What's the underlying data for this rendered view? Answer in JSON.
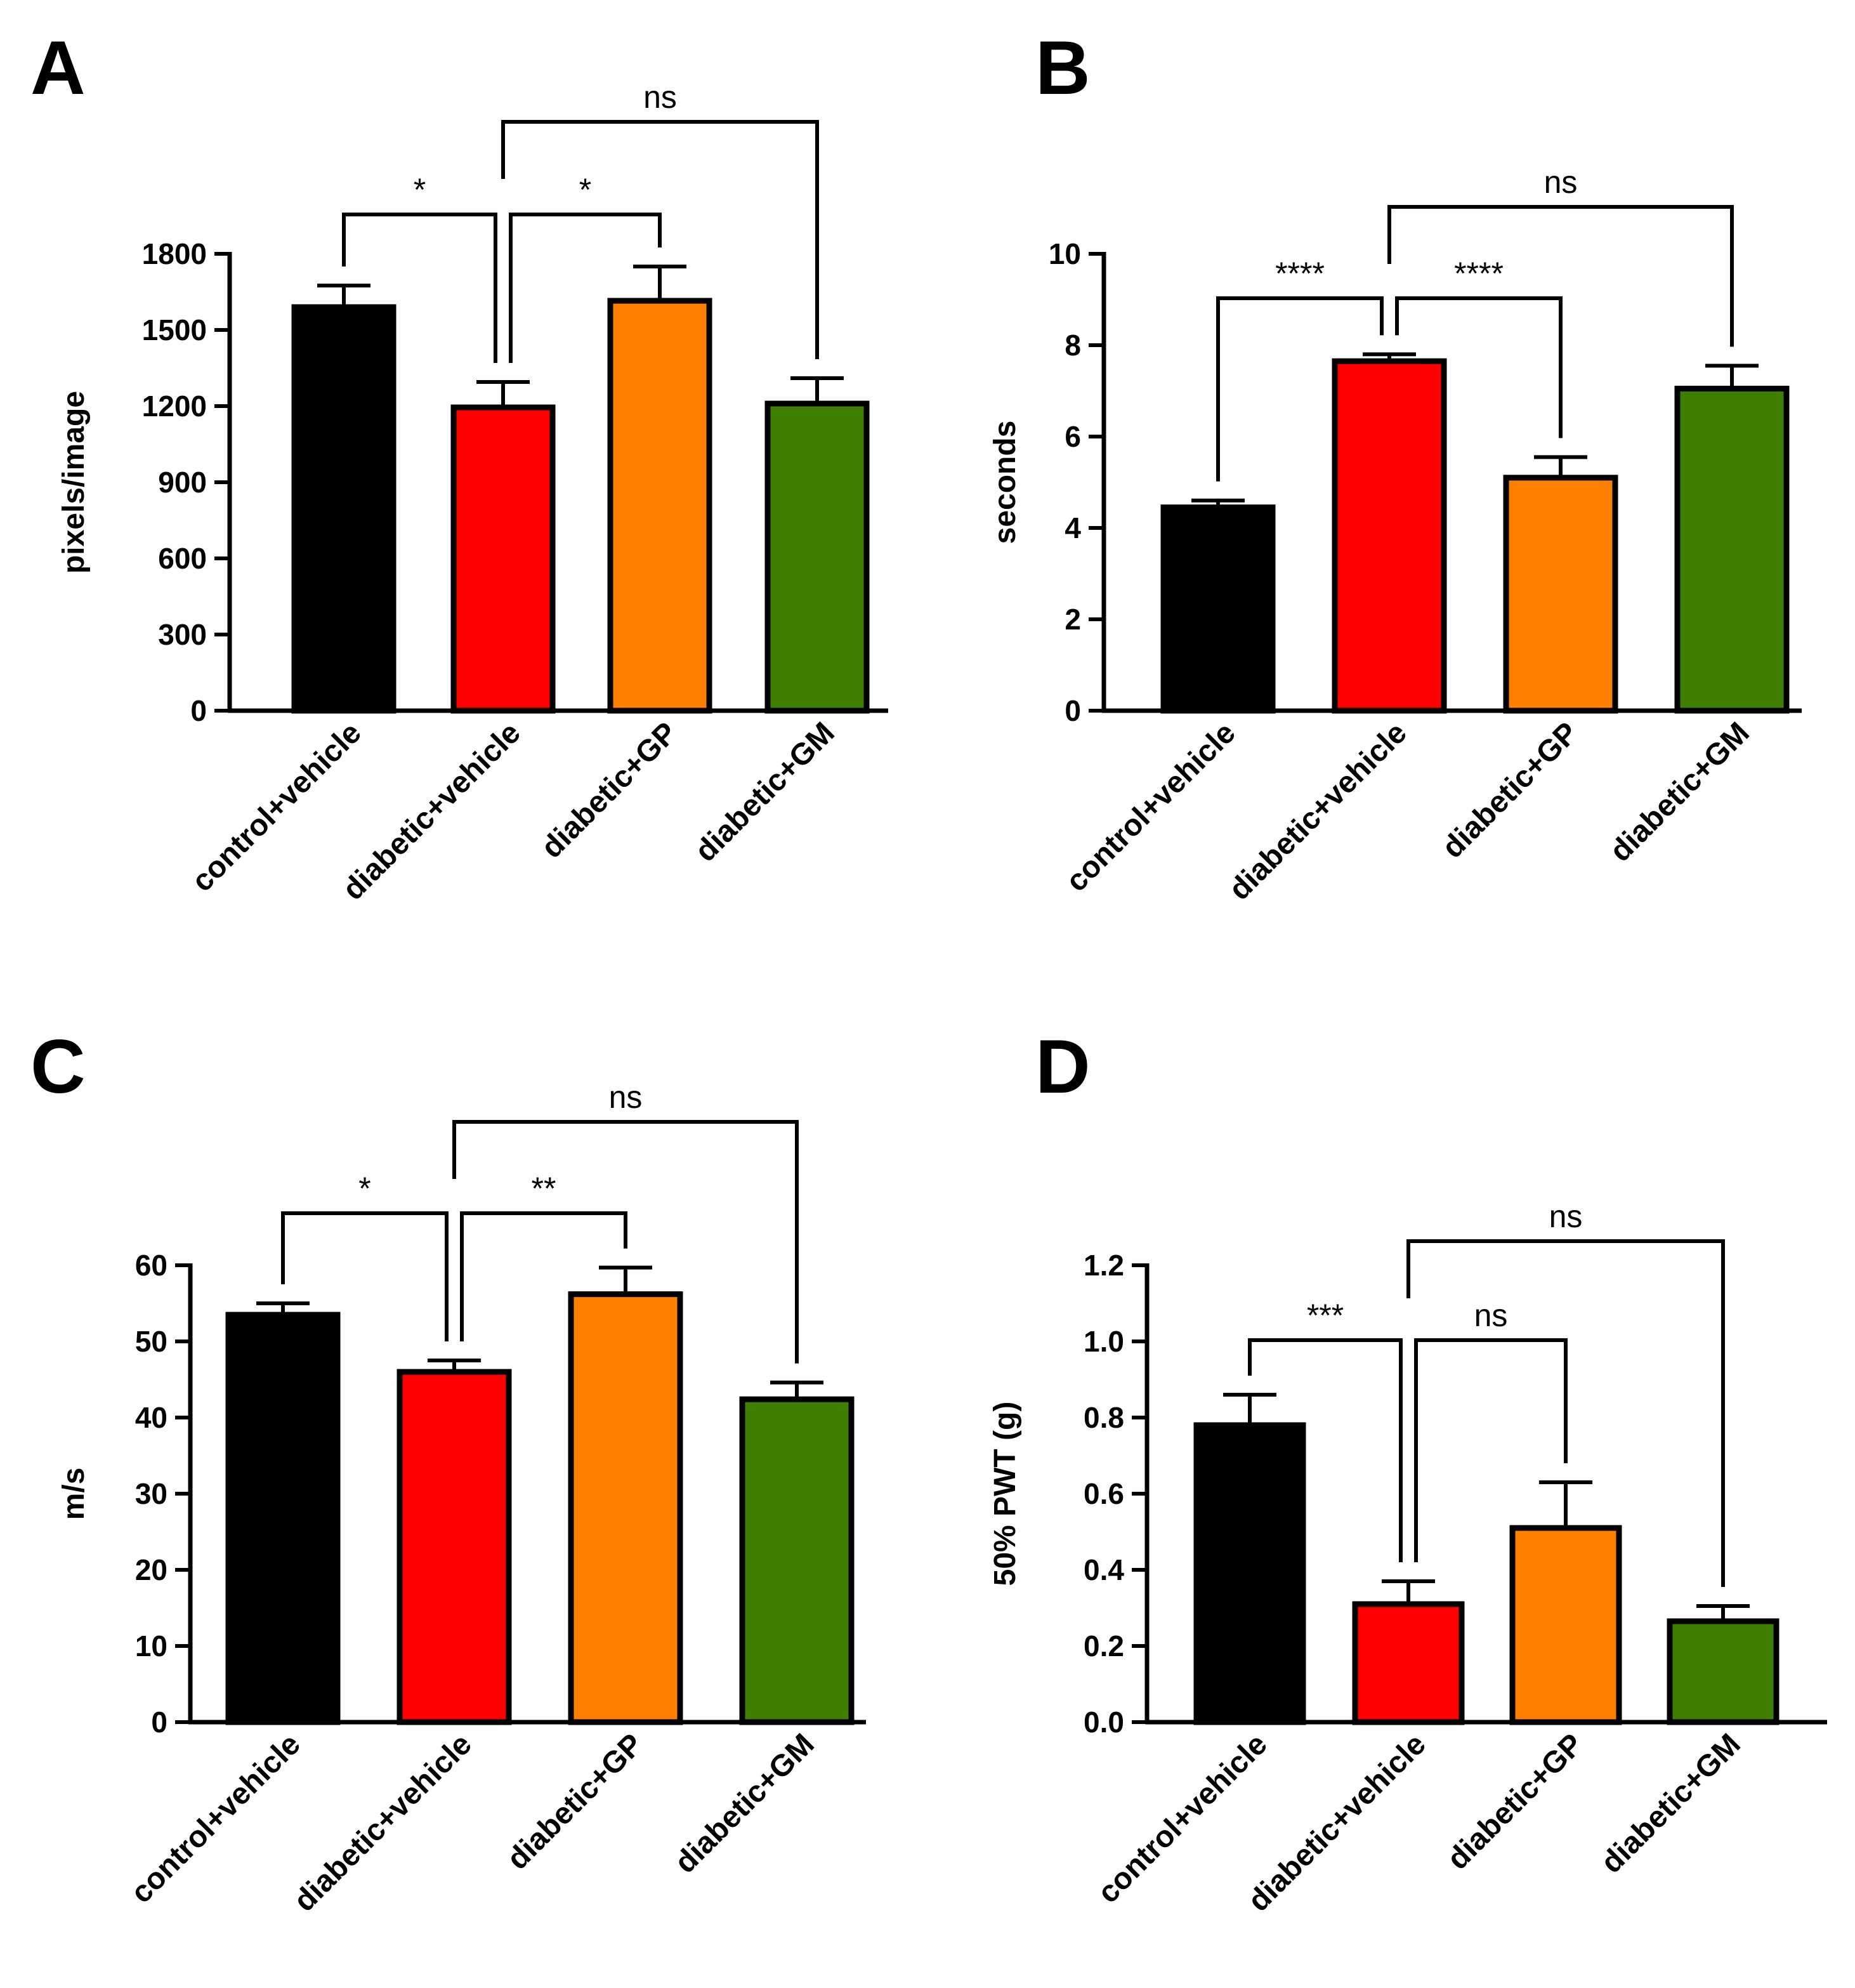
{
  "colors": {
    "control_vehicle": "#000000",
    "diabetic_vehicle": "#ff0000",
    "diabetic_gp": "#ff8000",
    "diabetic_gm": "#3f7f00",
    "axis": "#000000"
  },
  "chart_data": [
    {
      "panel": "A",
      "type": "bar",
      "categories": [
        "control+vehicle",
        "diabetic+vehicle",
        "diabetic+GP",
        "diabetic+GM"
      ],
      "values": [
        1590,
        1195,
        1615,
        1210
      ],
      "errors": [
        85,
        100,
        135,
        100
      ],
      "ylabel": "pixels/image",
      "ylim": [
        0,
        1800
      ],
      "yticks": [
        0,
        300,
        600,
        900,
        1200,
        1500,
        1800
      ],
      "ytick_labels": [
        "0",
        "300",
        "600",
        "900",
        "1200",
        "1500",
        "1800"
      ],
      "significance": [
        {
          "from": 0,
          "to": 1,
          "label": "*"
        },
        {
          "from": 1,
          "to": 2,
          "label": "*"
        },
        {
          "from": 1,
          "to": 3,
          "label": "ns"
        }
      ]
    },
    {
      "panel": "B",
      "type": "bar",
      "categories": [
        "control+vehicle",
        "diabetic+vehicle",
        "diabetic+GP",
        "diabetic+GM"
      ],
      "values": [
        4.45,
        7.65,
        5.1,
        7.05
      ],
      "errors": [
        0.15,
        0.15,
        0.45,
        0.5
      ],
      "ylabel": "seconds",
      "ylim": [
        0,
        10
      ],
      "yticks": [
        0,
        2,
        4,
        6,
        8,
        10
      ],
      "ytick_labels": [
        "0",
        "2",
        "4",
        "6",
        "8",
        "10"
      ],
      "significance": [
        {
          "from": 0,
          "to": 1,
          "label": "****"
        },
        {
          "from": 1,
          "to": 2,
          "label": "****"
        },
        {
          "from": 1,
          "to": 3,
          "label": "ns"
        }
      ]
    },
    {
      "panel": "C",
      "type": "bar",
      "categories": [
        "control+vehicle",
        "diabetic+vehicle",
        "diabetic+GP",
        "diabetic+GM"
      ],
      "values": [
        53.5,
        46.0,
        56.2,
        42.4
      ],
      "errors": [
        1.5,
        1.5,
        3.5,
        2.2
      ],
      "ylabel": "m/s",
      "ylim": [
        0,
        60
      ],
      "yticks": [
        0,
        10,
        20,
        30,
        40,
        50,
        60
      ],
      "ytick_labels": [
        "0",
        "10",
        "20",
        "30",
        "40",
        "50",
        "60"
      ],
      "significance": [
        {
          "from": 0,
          "to": 1,
          "label": "*"
        },
        {
          "from": 1,
          "to": 2,
          "label": "**"
        },
        {
          "from": 1,
          "to": 3,
          "label": "ns"
        }
      ]
    },
    {
      "panel": "D",
      "type": "bar",
      "categories": [
        "control+vehicle",
        "diabetic+vehicle",
        "diabetic+GP",
        "diabetic+GM"
      ],
      "values": [
        0.78,
        0.31,
        0.51,
        0.265
      ],
      "errors": [
        0.08,
        0.06,
        0.12,
        0.04
      ],
      "ylabel": "50% PWT (g)",
      "ylim": [
        0,
        1.2
      ],
      "yticks": [
        0,
        0.2,
        0.4,
        0.6,
        0.8,
        1.0,
        1.2
      ],
      "ytick_labels": [
        "0.0",
        "0.2",
        "0.4",
        "0.6",
        "0.8",
        "1.0",
        "1.2"
      ],
      "significance": [
        {
          "from": 0,
          "to": 1,
          "label": "***"
        },
        {
          "from": 1,
          "to": 2,
          "label": "ns"
        },
        {
          "from": 1,
          "to": 3,
          "label": "ns"
        }
      ]
    }
  ]
}
